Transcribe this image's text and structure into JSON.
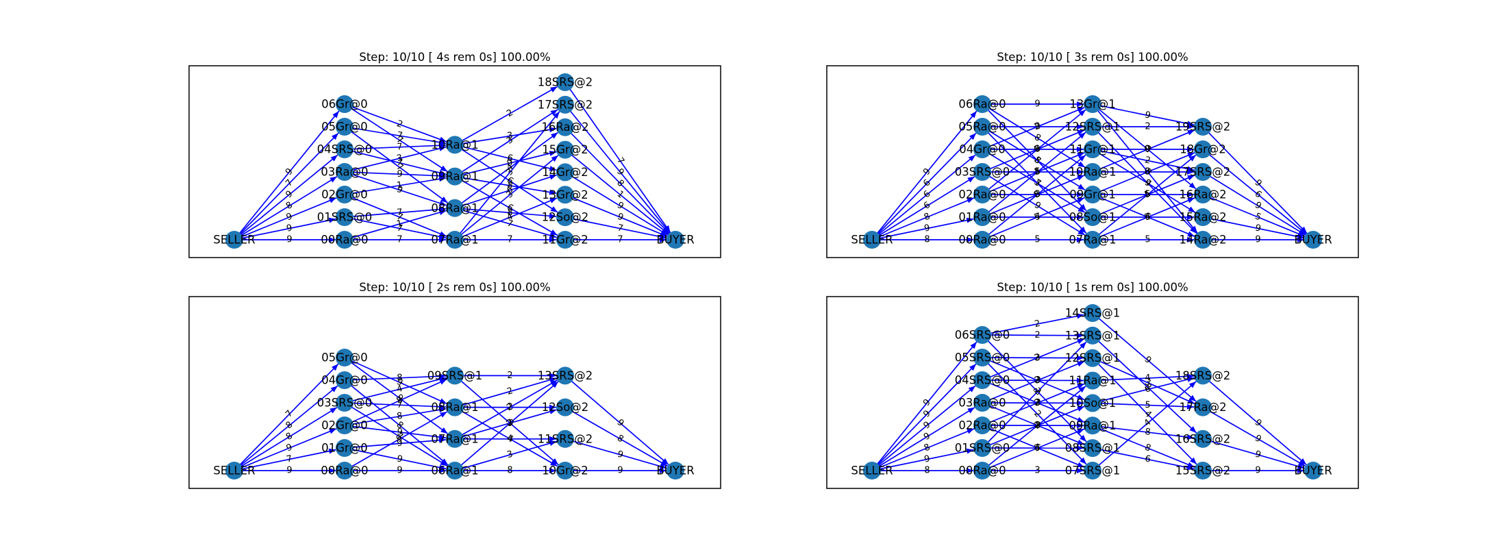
{
  "figure": {
    "panels": [
      {
        "title": "Step: 10/10 [ 4s rem  0s] 100.00%",
        "layers": [
          [
            "SELLER"
          ],
          [
            "00Ra@0",
            "01SRS@0",
            "02Gr@0",
            "03Ra@0",
            "04SRS@0",
            "05Gr@0",
            "06Gr@0"
          ],
          [
            "07Ra@1",
            "08Ra@1",
            "09Ra@1",
            "10Ra@1"
          ],
          [
            "11Gr@2",
            "12So@2",
            "13Gr@2",
            "14Gr@2",
            "15Gr@2",
            "16Ra@2",
            "17SRS@2",
            "18SRS@2"
          ],
          [
            "BUYER"
          ]
        ],
        "edges": [
          [
            "SELLER",
            "00Ra@0",
            9
          ],
          [
            "SELLER",
            "01SRS@0",
            9
          ],
          [
            "SELLER",
            "02Gr@0",
            9
          ],
          [
            "SELLER",
            "03Ra@0",
            8
          ],
          [
            "SELLER",
            "04SRS@0",
            9
          ],
          [
            "SELLER",
            "05Gr@0",
            7
          ],
          [
            "SELLER",
            "06Gr@0",
            9
          ],
          [
            "00Ra@0",
            "07Ra@1",
            7
          ],
          [
            "01SRS@0",
            "07Ra@1",
            7
          ],
          [
            "01SRS@0",
            "08Ra@1",
            7
          ],
          [
            "02Gr@0",
            "07Ra@1",
            7
          ],
          [
            "02Gr@0",
            "09Ra@1",
            1
          ],
          [
            "03Ra@0",
            "08Ra@1",
            9
          ],
          [
            "03Ra@0",
            "10Ra@1",
            3
          ],
          [
            "04SRS@0",
            "09Ra@1",
            7
          ],
          [
            "04SRS@0",
            "10Ra@1",
            7
          ],
          [
            "05Gr@0",
            "08Ra@1",
            7
          ],
          [
            "05Gr@0",
            "10Ra@1",
            7
          ],
          [
            "06Gr@0",
            "09Ra@1",
            7
          ],
          [
            "06Gr@0",
            "10Ra@1",
            2
          ],
          [
            "00Ra@0",
            "08Ra@1",
            1
          ],
          [
            "03Ra@0",
            "09Ra@1",
            9
          ],
          [
            "07Ra@1",
            "11Gr@2",
            7
          ],
          [
            "07Ra@1",
            "13Gr@2",
            4
          ],
          [
            "07Ra@1",
            "15Gr@2",
            3
          ],
          [
            "08Ra@1",
            "12So@2",
            8
          ],
          [
            "08Ra@1",
            "14Gr@2",
            6
          ],
          [
            "08Ra@1",
            "16Ra@2",
            4
          ],
          [
            "09Ra@1",
            "13Gr@2",
            8
          ],
          [
            "09Ra@1",
            "15Gr@2",
            9
          ],
          [
            "09Ra@1",
            "17SRS@2",
            3
          ],
          [
            "10Ra@1",
            "14Gr@2",
            6
          ],
          [
            "10Ra@1",
            "16Ra@2",
            3
          ],
          [
            "10Ra@1",
            "18SRS@2",
            2
          ],
          [
            "08Ra@1",
            "11Gr@2",
            7
          ],
          [
            "10Ra@1",
            "12So@2",
            6
          ],
          [
            "09Ra@1",
            "11Gr@2",
            6
          ],
          [
            "07Ra@1",
            "17SRS@2",
            3
          ],
          [
            "11Gr@2",
            "BUYER",
            7
          ],
          [
            "12So@2",
            "BUYER",
            7
          ],
          [
            "13Gr@2",
            "BUYER",
            9
          ],
          [
            "14Gr@2",
            "BUYER",
            9
          ],
          [
            "15Gr@2",
            "BUYER",
            1
          ],
          [
            "16Ra@2",
            "BUYER",
            8
          ],
          [
            "17SRS@2",
            "BUYER",
            9
          ],
          [
            "18SRS@2",
            "BUYER",
            7
          ]
        ]
      },
      {
        "title": "Step: 10/10 [ 3s rem  0s] 100.00%",
        "layers": [
          [
            "SELLER"
          ],
          [
            "00Ra@0",
            "01Ra@0",
            "02Ra@0",
            "03SRS@0",
            "04Gr@0",
            "05Ra@0",
            "06Ra@0"
          ],
          [
            "07Ra@1",
            "08So@1",
            "09Gr@1",
            "10Ra@1",
            "11Gr@1",
            "12SRS@1",
            "13Gr@1"
          ],
          [
            "14Ra@2",
            "15Ra@2",
            "16Ra@2",
            "17SRS@2",
            "18Gr@2",
            "19SRS@2"
          ],
          [
            "BUYER"
          ]
        ],
        "edges": [
          [
            "SELLER",
            "00Ra@0",
            8
          ],
          [
            "SELLER",
            "01Ra@0",
            9
          ],
          [
            "SELLER",
            "02Ra@0",
            8
          ],
          [
            "SELLER",
            "03SRS@0",
            6
          ],
          [
            "SELLER",
            "04Gr@0",
            6
          ],
          [
            "SELLER",
            "05Ra@0",
            6
          ],
          [
            "SELLER",
            "06Ra@0",
            9
          ],
          [
            "00Ra@0",
            "07Ra@1",
            5
          ],
          [
            "01Ra@0",
            "08So@1",
            4
          ],
          [
            "02Ra@0",
            "09Gr@1",
            3
          ],
          [
            "03SRS@0",
            "10Ra@1",
            5
          ],
          [
            "04Gr@0",
            "11Gr@1",
            9
          ],
          [
            "05Ra@0",
            "12SRS@1",
            9
          ],
          [
            "06Ra@0",
            "13Gr@1",
            9
          ],
          [
            "00Ra@0",
            "09Gr@1",
            5
          ],
          [
            "01Ra@0",
            "10Ra@1",
            5
          ],
          [
            "02Ra@0",
            "11Gr@1",
            3
          ],
          [
            "03SRS@0",
            "12SRS@1",
            7
          ],
          [
            "04Gr@0",
            "13Gr@1",
            2
          ],
          [
            "05Ra@0",
            "07Ra@1",
            5
          ],
          [
            "06Ra@0",
            "08So@1",
            5
          ],
          [
            "00Ra@0",
            "11Gr@1",
            8
          ],
          [
            "02Ra@0",
            "13Gr@1",
            6
          ],
          [
            "04Gr@0",
            "08So@1",
            7
          ],
          [
            "06Ra@0",
            "10Ra@1",
            8
          ],
          [
            "01Ra@0",
            "12SRS@1",
            4
          ],
          [
            "03SRS@0",
            "07Ra@1",
            9
          ],
          [
            "05Ra@0",
            "09Gr@1",
            8
          ],
          [
            "07Ra@1",
            "14Ra@2",
            5
          ],
          [
            "08So@1",
            "15Ra@2",
            4
          ],
          [
            "09Gr@1",
            "16Ra@2",
            5
          ],
          [
            "10Ra@1",
            "17SRS@2",
            3
          ],
          [
            "11Gr@1",
            "18Gr@2",
            9
          ],
          [
            "12SRS@1",
            "19SRS@2",
            2
          ],
          [
            "13Gr@1",
            "14Ra@2",
            8
          ],
          [
            "07Ra@1",
            "16Ra@2",
            5
          ],
          [
            "08So@1",
            "17SRS@2",
            5
          ],
          [
            "09Gr@1",
            "18Gr@2",
            6
          ],
          [
            "10Ra@1",
            "19SRS@2",
            9
          ],
          [
            "11Gr@1",
            "15Ra@2",
            9
          ],
          [
            "12SRS@1",
            "14Ra@2",
            4
          ],
          [
            "13Gr@1",
            "16Ra@2",
            2
          ],
          [
            "07Ra@1",
            "18Gr@2",
            4
          ],
          [
            "09Gr@1",
            "14Ra@2",
            6
          ],
          [
            "11Gr@1",
            "17SRS@2",
            2
          ],
          [
            "13Gr@1",
            "19SRS@2",
            9
          ],
          [
            "14Ra@2",
            "BUYER",
            9
          ],
          [
            "15Ra@2",
            "BUYER",
            9
          ],
          [
            "16Ra@2",
            "BUYER",
            5
          ],
          [
            "17SRS@2",
            "BUYER",
            9
          ],
          [
            "18Gr@2",
            "BUYER",
            6
          ],
          [
            "19SRS@2",
            "BUYER",
            9
          ]
        ]
      },
      {
        "title": "Step: 10/10 [ 2s rem  0s] 100.00%",
        "layers": [
          [
            "SELLER"
          ],
          [
            "00Ra@0",
            "01Gr@0",
            "02Gr@0",
            "03SRS@0",
            "04Gr@0",
            "05Gr@0"
          ],
          [
            "06Ra@1",
            "07Ra@1",
            "08Ra@1",
            "09SRS@1"
          ],
          [
            "10Gr@2",
            "11SRS@2",
            "12So@2",
            "13SRS@2"
          ],
          [
            "BUYER"
          ]
        ],
        "edges": [
          [
            "SELLER",
            "00Ra@0",
            9
          ],
          [
            "SELLER",
            "01Gr@0",
            7
          ],
          [
            "SELLER",
            "02Gr@0",
            9
          ],
          [
            "SELLER",
            "03SRS@0",
            8
          ],
          [
            "SELLER",
            "04Gr@0",
            8
          ],
          [
            "SELLER",
            "05Gr@0",
            7
          ],
          [
            "00Ra@0",
            "06Ra@1",
            9
          ],
          [
            "01Gr@0",
            "06Ra@1",
            9
          ],
          [
            "01Gr@0",
            "07Ra@1",
            9
          ],
          [
            "02Gr@0",
            "07Ra@1",
            9
          ],
          [
            "02Gr@0",
            "08Ra@1",
            8
          ],
          [
            "03SRS@0",
            "08Ra@1",
            7
          ],
          [
            "03SRS@0",
            "09SRS@1",
            4
          ],
          [
            "04Gr@0",
            "09SRS@1",
            8
          ],
          [
            "04Gr@0",
            "06Ra@1",
            8
          ],
          [
            "05Gr@0",
            "07Ra@1",
            9
          ],
          [
            "05Gr@0",
            "08Ra@1",
            9
          ],
          [
            "00Ra@0",
            "08Ra@1",
            9
          ],
          [
            "02Gr@0",
            "09SRS@1",
            8
          ],
          [
            "03SRS@0",
            "06Ra@1",
            7
          ],
          [
            "06Ra@1",
            "10Gr@2",
            8
          ],
          [
            "06Ra@1",
            "11SRS@2",
            3
          ],
          [
            "07Ra@1",
            "11SRS@2",
            4
          ],
          [
            "07Ra@1",
            "12So@2",
            2
          ],
          [
            "08Ra@1",
            "12So@2",
            2
          ],
          [
            "08Ra@1",
            "13SRS@2",
            2
          ],
          [
            "09SRS@1",
            "13SRS@2",
            2
          ],
          [
            "09SRS@1",
            "10Gr@2",
            3
          ],
          [
            "06Ra@1",
            "13SRS@2",
            2
          ],
          [
            "08Ra@1",
            "10Gr@2",
            4
          ],
          [
            "07Ra@1",
            "13SRS@2",
            2
          ],
          [
            "10Gr@2",
            "BUYER",
            9
          ],
          [
            "11SRS@2",
            "BUYER",
            9
          ],
          [
            "12So@2",
            "BUYER",
            8
          ],
          [
            "13SRS@2",
            "BUYER",
            9
          ]
        ]
      },
      {
        "title": "Step: 10/10 [ 1s rem  0s] 100.00%",
        "layers": [
          [
            "SELLER"
          ],
          [
            "00Ra@0",
            "01SRS@0",
            "02Ra@0",
            "03Ra@0",
            "04SRS@0",
            "05SRS@0",
            "06SRS@0"
          ],
          [
            "07SRS@1",
            "08SRS@1",
            "09Ra@1",
            "10So@1",
            "11Ra@1",
            "12SRS@1",
            "13SRS@1",
            "14SRS@1"
          ],
          [
            "15SRS@2",
            "16SRS@2",
            "17Ra@2",
            "18SRS@2"
          ],
          [
            "BUYER"
          ]
        ],
        "edges": [
          [
            "SELLER",
            "00Ra@0",
            8
          ],
          [
            "SELLER",
            "01SRS@0",
            9
          ],
          [
            "SELLER",
            "02Ra@0",
            8
          ],
          [
            "SELLER",
            "03Ra@0",
            9
          ],
          [
            "SELLER",
            "04SRS@0",
            9
          ],
          [
            "SELLER",
            "05SRS@0",
            9
          ],
          [
            "SELLER",
            "06SRS@0",
            9
          ],
          [
            "00Ra@0",
            "07SRS@1",
            3
          ],
          [
            "01SRS@0",
            "08SRS@1",
            4
          ],
          [
            "02Ra@0",
            "09Ra@1",
            2
          ],
          [
            "03Ra@0",
            "10So@1",
            3
          ],
          [
            "04SRS@0",
            "11Ra@1",
            2
          ],
          [
            "05SRS@0",
            "12SRS@1",
            2
          ],
          [
            "06SRS@0",
            "13SRS@1",
            2
          ],
          [
            "06SRS@0",
            "14SRS@1",
            2
          ],
          [
            "00Ra@0",
            "09Ra@1",
            5
          ],
          [
            "01SRS@0",
            "10So@1",
            4
          ],
          [
            "02Ra@0",
            "11Ra@1",
            2
          ],
          [
            "03Ra@0",
            "12SRS@1",
            3
          ],
          [
            "04SRS@0",
            "13SRS@1",
            3
          ],
          [
            "05SRS@0",
            "07SRS@1",
            2
          ],
          [
            "06SRS@0",
            "08SRS@1",
            2
          ],
          [
            "00Ra@0",
            "11Ra@1",
            2
          ],
          [
            "01SRS@0",
            "13SRS@1",
            3
          ],
          [
            "02Ra@0",
            "07SRS@1",
            5
          ],
          [
            "03Ra@0",
            "08SRS@1",
            2
          ],
          [
            "04SRS@0",
            "09Ra@1",
            2
          ],
          [
            "05SRS@0",
            "10So@1",
            2
          ],
          [
            "08SRS@1",
            "15SRS@2",
            6
          ],
          [
            "09Ra@1",
            "16SRS@2",
            8
          ],
          [
            "10So@1",
            "17Ra@2",
            5
          ],
          [
            "11Ra@1",
            "18SRS@2",
            4
          ],
          [
            "12SRS@1",
            "15SRS@2",
            4
          ],
          [
            "13SRS@1",
            "16SRS@2",
            3
          ],
          [
            "14SRS@1",
            "17Ra@2",
            9
          ],
          [
            "07SRS@1",
            "18SRS@2",
            4
          ],
          [
            "09Ra@1",
            "15SRS@2",
            8
          ],
          [
            "10So@1",
            "18SRS@2",
            6
          ],
          [
            "12SRS@1",
            "17Ra@2",
            3
          ],
          [
            "15SRS@2",
            "BUYER",
            9
          ],
          [
            "16SRS@2",
            "BUYER",
            9
          ],
          [
            "17Ra@2",
            "BUYER",
            9
          ],
          [
            "18SRS@2",
            "BUYER",
            9
          ]
        ]
      }
    ]
  }
}
